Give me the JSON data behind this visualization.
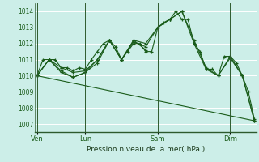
{
  "bg_color": "#cceee8",
  "plot_bg_color": "#cceee8",
  "grid_color": "#ffffff",
  "line_color": "#1a5c1a",
  "xlabel": "Pression niveau de la mer( hPa )",
  "ylim": [
    1006.5,
    1014.5
  ],
  "yticks": [
    1007,
    1008,
    1009,
    1010,
    1011,
    1012,
    1013,
    1014
  ],
  "day_labels": [
    "Ven",
    "Lun",
    "Sam",
    "Dim"
  ],
  "day_positions": [
    0,
    48,
    120,
    192
  ],
  "xlim": [
    -2,
    218
  ],
  "series": [
    {
      "x": [
        0,
        6,
        12,
        18,
        24,
        30,
        36,
        42,
        48,
        54,
        60,
        66,
        72,
        78,
        84,
        90,
        96,
        102,
        108,
        114,
        120,
        126,
        132,
        138,
        144,
        150,
        156,
        162,
        168,
        174,
        180,
        186,
        192,
        198,
        204,
        210,
        216
      ],
      "y": [
        1010.0,
        1011.0,
        1011.0,
        1011.0,
        1010.5,
        1010.5,
        1010.3,
        1010.5,
        1010.4,
        1011.0,
        1011.5,
        1012.0,
        1012.2,
        1011.8,
        1011.0,
        1011.5,
        1012.0,
        1012.0,
        1011.5,
        1011.5,
        1013.0,
        1013.3,
        1013.5,
        1014.0,
        1013.5,
        1013.5,
        1012.0,
        1011.5,
        1010.4,
        1010.4,
        1010.0,
        1011.2,
        1011.2,
        1010.8,
        1010.0,
        1009.0,
        1007.3
      ],
      "marker": "+"
    },
    {
      "x": [
        0,
        12,
        24,
        36,
        48,
        60,
        72,
        84,
        96,
        108,
        120,
        132,
        144,
        156,
        168,
        180,
        192,
        204,
        216
      ],
      "y": [
        1010.0,
        1011.0,
        1010.5,
        1010.2,
        1010.3,
        1011.0,
        1012.2,
        1011.0,
        1012.1,
        1011.8,
        1013.0,
        1013.5,
        1014.0,
        1012.2,
        1010.5,
        1010.0,
        1011.1,
        1010.0,
        1007.2
      ],
      "marker": "+"
    },
    {
      "x": [
        0,
        12,
        24,
        36,
        48,
        60,
        72,
        84,
        96,
        108,
        120,
        132,
        144,
        156,
        168,
        180,
        192,
        204,
        216
      ],
      "y": [
        1010.0,
        1011.0,
        1010.3,
        1009.9,
        1010.2,
        1011.0,
        1012.2,
        1011.0,
        1012.2,
        1012.0,
        1013.0,
        1013.5,
        1014.0,
        1012.0,
        1010.4,
        1010.0,
        1011.2,
        1010.0,
        1007.2
      ],
      "marker": "+"
    },
    {
      "x": [
        0,
        216
      ],
      "y": [
        1010.0,
        1007.2
      ],
      "marker": null
    },
    {
      "x": [
        0,
        12,
        24,
        36,
        48,
        60,
        72,
        84,
        96,
        108
      ],
      "y": [
        1010.0,
        1011.0,
        1010.2,
        1009.9,
        1010.2,
        1010.8,
        1012.2,
        1011.0,
        1012.2,
        1011.6
      ],
      "marker": "+"
    }
  ]
}
